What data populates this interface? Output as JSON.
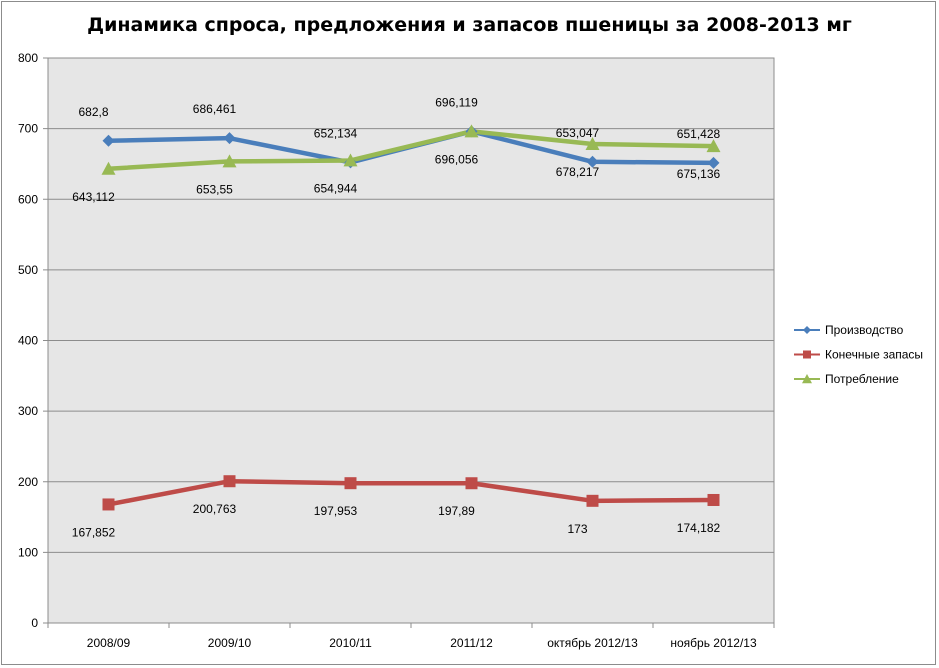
{
  "chart_data": {
    "type": "line",
    "title": "Динамика спроса, предложения и запасов пшеницы за 2008-2013 мг",
    "xlabel": "",
    "ylabel": "",
    "ylim": [
      0,
      800
    ],
    "yticks": [
      0,
      100,
      200,
      300,
      400,
      500,
      600,
      700,
      800
    ],
    "grid": true,
    "legend": "right",
    "categories": [
      "2008/09",
      "2009/10",
      "2010/11",
      "2011/12",
      "октябрь 2012/13",
      "ноябрь 2012/13"
    ],
    "series": [
      {
        "name": "Производство",
        "color": "#4a7ebb",
        "marker": "diamond",
        "values": [
          682.8,
          686.461,
          652.134,
          696.056,
          653.047,
          651.428
        ],
        "labels": [
          "682,8",
          "686,461",
          "652,134",
          "696,056",
          "653,047",
          "651,428"
        ],
        "label_pos": [
          "above",
          "above",
          "above",
          "below",
          "above",
          "above"
        ]
      },
      {
        "name": "Конечные запасы",
        "color": "#be4b48",
        "marker": "square",
        "values": [
          167.852,
          200.763,
          197.953,
          197.89,
          173,
          174.182
        ],
        "labels": [
          "167,852",
          "200,763",
          "197,953",
          "197,89",
          "173",
          "174,182"
        ],
        "label_pos": [
          "below",
          "below",
          "below",
          "below",
          "below",
          "below"
        ]
      },
      {
        "name": "Потребление",
        "color": "#98b954",
        "marker": "triangle",
        "values": [
          643.112,
          653.55,
          654.944,
          696.119,
          678.217,
          675.136
        ],
        "labels": [
          "643,112",
          "653,55",
          "654,944",
          "696,119",
          "678,217",
          "675,136"
        ],
        "label_pos": [
          "below",
          "below",
          "below",
          "above",
          "below",
          "below"
        ]
      }
    ]
  }
}
